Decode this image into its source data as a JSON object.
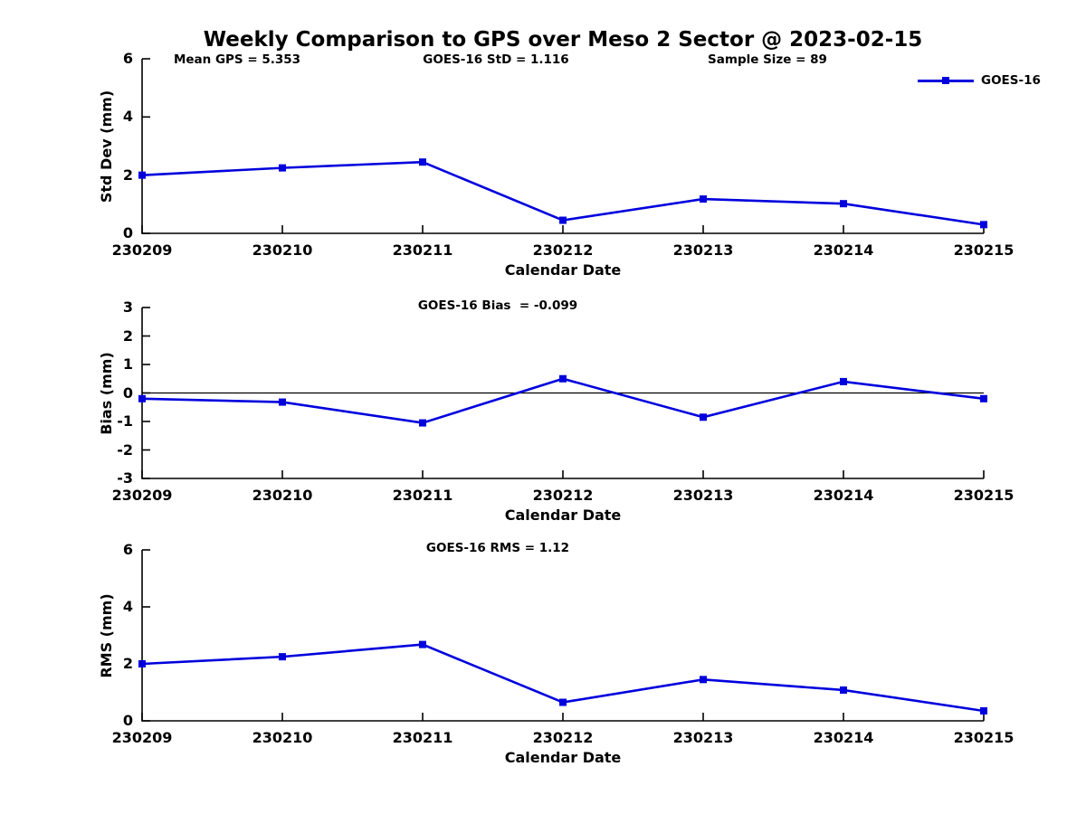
{
  "figure": {
    "title": "Weekly Comparison to GPS over Meso 2 Sector @ 2023-02-15",
    "top_annotations": [
      {
        "text": "Mean GPS = 5.353"
      },
      {
        "text": "GOES-16 StD = 1.116"
      },
      {
        "text": "Sample Size = 89"
      }
    ],
    "legend": {
      "label": "GOES-16"
    },
    "colors": {
      "series": "#0000dd",
      "axis": "#000000"
    }
  },
  "chart_data": [
    {
      "type": "line",
      "annotation": "",
      "categories": [
        "230209",
        "230210",
        "230211",
        "230212",
        "230213",
        "230214",
        "230215"
      ],
      "series": [
        {
          "name": "GOES-16",
          "values": [
            2.0,
            2.25,
            2.45,
            0.45,
            1.18,
            1.02,
            0.3
          ]
        }
      ],
      "xlabel": "Calendar Date",
      "ylabel": "Std Dev (mm)",
      "ylim": [
        0,
        6
      ],
      "yticks": [
        0,
        2,
        4,
        6
      ],
      "zero_line": false,
      "grid": false,
      "legend_position": "top-right"
    },
    {
      "type": "line",
      "annotation": "GOES-16 Bias  = -0.099",
      "categories": [
        "230209",
        "230210",
        "230211",
        "230212",
        "230213",
        "230214",
        "230215"
      ],
      "series": [
        {
          "name": "GOES-16",
          "values": [
            -0.2,
            -0.32,
            -1.05,
            0.5,
            -0.85,
            0.4,
            -0.2
          ]
        }
      ],
      "xlabel": "Calendar Date",
      "ylabel": "Bias (mm)",
      "ylim": [
        -3,
        3
      ],
      "yticks": [
        -3,
        -2,
        -1,
        0,
        1,
        2,
        3
      ],
      "zero_line": true,
      "grid": false,
      "legend_position": "none"
    },
    {
      "type": "line",
      "annotation": "GOES-16 RMS = 1.12",
      "categories": [
        "230209",
        "230210",
        "230211",
        "230212",
        "230213",
        "230214",
        "230215"
      ],
      "series": [
        {
          "name": "GOES-16",
          "values": [
            2.0,
            2.25,
            2.68,
            0.65,
            1.45,
            1.08,
            0.35
          ]
        }
      ],
      "xlabel": "Calendar Date",
      "ylabel": "RMS (mm)",
      "ylim": [
        0,
        6
      ],
      "yticks": [
        0,
        2,
        4,
        6
      ],
      "zero_line": false,
      "grid": false,
      "legend_position": "none"
    }
  ]
}
